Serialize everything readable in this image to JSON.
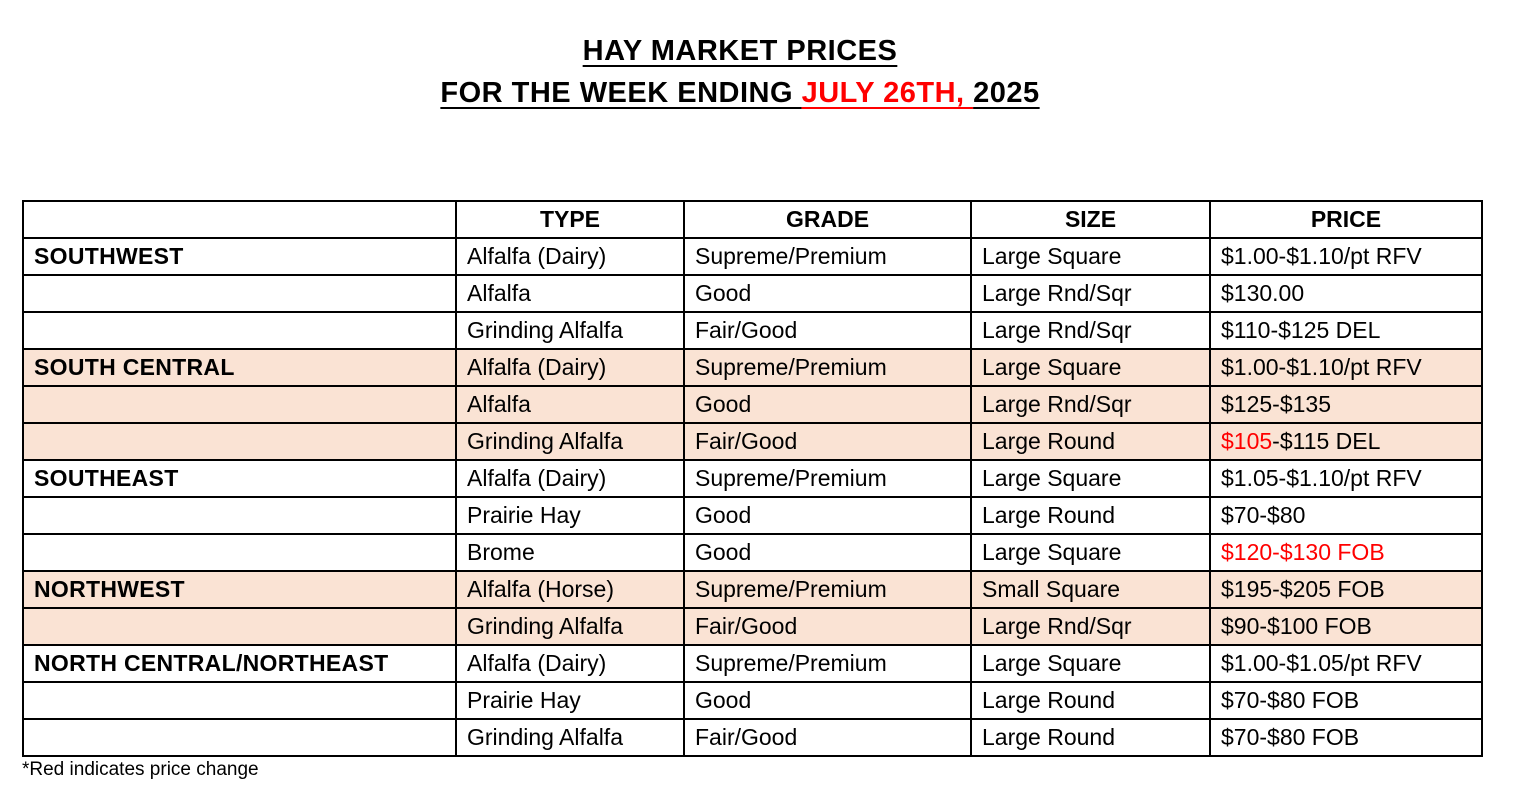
{
  "title": {
    "line1": "HAY MARKET PRICES",
    "line2_prefix": "FOR THE WEEK ENDING ",
    "line2_highlight": "JULY 26TH, ",
    "line2_suffix": "2025"
  },
  "colors": {
    "highlight_red": "#ff0000",
    "band_peach": "#fae3d4",
    "border_black": "#000000"
  },
  "table": {
    "headers": [
      "",
      "TYPE",
      "GRADE",
      "SIZE",
      "PRICE"
    ],
    "rows": [
      {
        "region": "SOUTHWEST",
        "type": "Alfalfa (Dairy)",
        "grade": "Supreme/Premium",
        "size": "Large Square",
        "band": false,
        "price": [
          {
            "text": "$1.00-$1.10/pt RFV",
            "red": false
          }
        ]
      },
      {
        "region": "",
        "type": "Alfalfa",
        "grade": "Good",
        "size": "Large Rnd/Sqr",
        "band": false,
        "price": [
          {
            "text": "$130.00",
            "red": false
          }
        ]
      },
      {
        "region": "",
        "type": "Grinding Alfalfa",
        "grade": "Fair/Good",
        "size": "Large Rnd/Sqr",
        "band": false,
        "price": [
          {
            "text": "$110-$125 DEL",
            "red": false
          }
        ]
      },
      {
        "region": "SOUTH CENTRAL",
        "type": "Alfalfa (Dairy)",
        "grade": "Supreme/Premium",
        "size": "Large Square",
        "band": true,
        "price": [
          {
            "text": "$1.00-$1.10/pt RFV",
            "red": false
          }
        ]
      },
      {
        "region": "",
        "type": "Alfalfa",
        "grade": "Good",
        "size": "Large Rnd/Sqr",
        "band": true,
        "price": [
          {
            "text": "$125-$135",
            "red": false
          }
        ]
      },
      {
        "region": "",
        "type": "Grinding Alfalfa",
        "grade": "Fair/Good",
        "size": "Large Round",
        "band": true,
        "price": [
          {
            "text": "$105",
            "red": true
          },
          {
            "text": "-$115 DEL",
            "red": false
          }
        ]
      },
      {
        "region": "SOUTHEAST",
        "type": "Alfalfa (Dairy)",
        "grade": "Supreme/Premium",
        "size": "Large Square",
        "band": false,
        "price": [
          {
            "text": "$1.05-$1.10/pt RFV",
            "red": false
          }
        ]
      },
      {
        "region": "",
        "type": "Prairie Hay",
        "grade": "Good",
        "size": "Large Round",
        "band": false,
        "price": [
          {
            "text": "$70-$80",
            "red": false
          }
        ]
      },
      {
        "region": "",
        "type": "Brome",
        "grade": "Good",
        "size": "Large Square",
        "band": false,
        "price": [
          {
            "text": "$120-$130 FOB",
            "red": true
          }
        ]
      },
      {
        "region": "NORTHWEST",
        "type": "Alfalfa (Horse)",
        "grade": "Supreme/Premium",
        "size": "Small Square",
        "band": true,
        "price": [
          {
            "text": "$195-$205 FOB",
            "red": false
          }
        ]
      },
      {
        "region": "",
        "type": "Grinding Alfalfa",
        "grade": "Fair/Good",
        "size": "Large Rnd/Sqr",
        "band": true,
        "price": [
          {
            "text": "$90-$100 FOB",
            "red": false
          }
        ]
      },
      {
        "region": "NORTH CENTRAL/NORTHEAST",
        "type": "Alfalfa (Dairy)",
        "grade": "Supreme/Premium",
        "size": "Large Square",
        "band": false,
        "price": [
          {
            "text": "$1.00-$1.05/pt RFV",
            "red": false
          }
        ]
      },
      {
        "region": "",
        "type": "Prairie Hay",
        "grade": "Good",
        "size": "Large Round",
        "band": false,
        "price": [
          {
            "text": "$70-$80 FOB",
            "red": false
          }
        ]
      },
      {
        "region": "",
        "type": "Grinding Alfalfa",
        "grade": "Fair/Good",
        "size": "Large Round",
        "band": false,
        "price": [
          {
            "text": "$70-$80 FOB",
            "red": false
          }
        ]
      }
    ]
  },
  "footnote": "*Red indicates price change"
}
